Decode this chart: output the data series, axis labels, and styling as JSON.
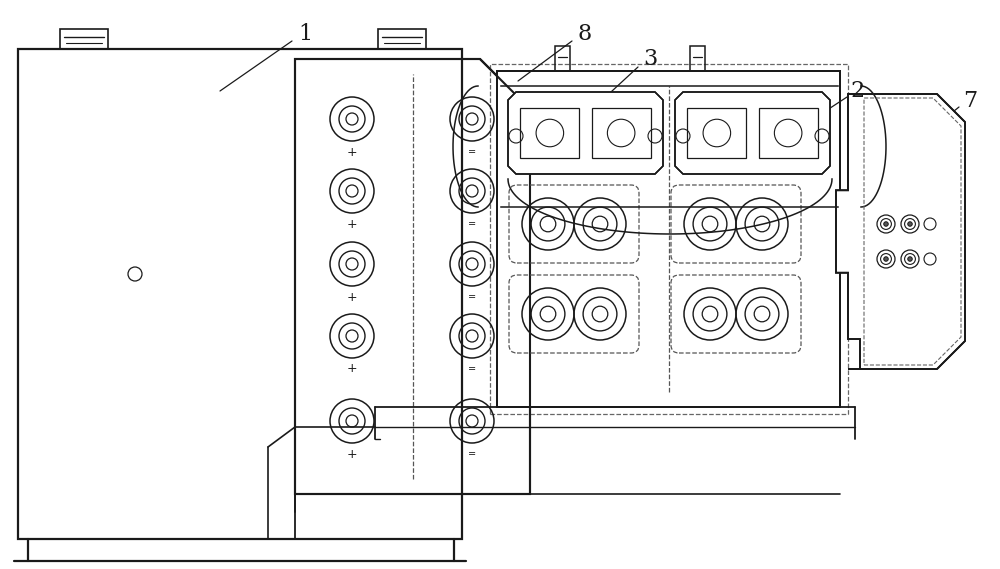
{
  "bg_color": "#ffffff",
  "line_color": "#1a1a1a",
  "fig_width": 10.0,
  "fig_height": 5.69,
  "label_fs": 16,
  "lw_main": 1.4,
  "lw_dash": 0.9,
  "lw_thin": 0.8
}
